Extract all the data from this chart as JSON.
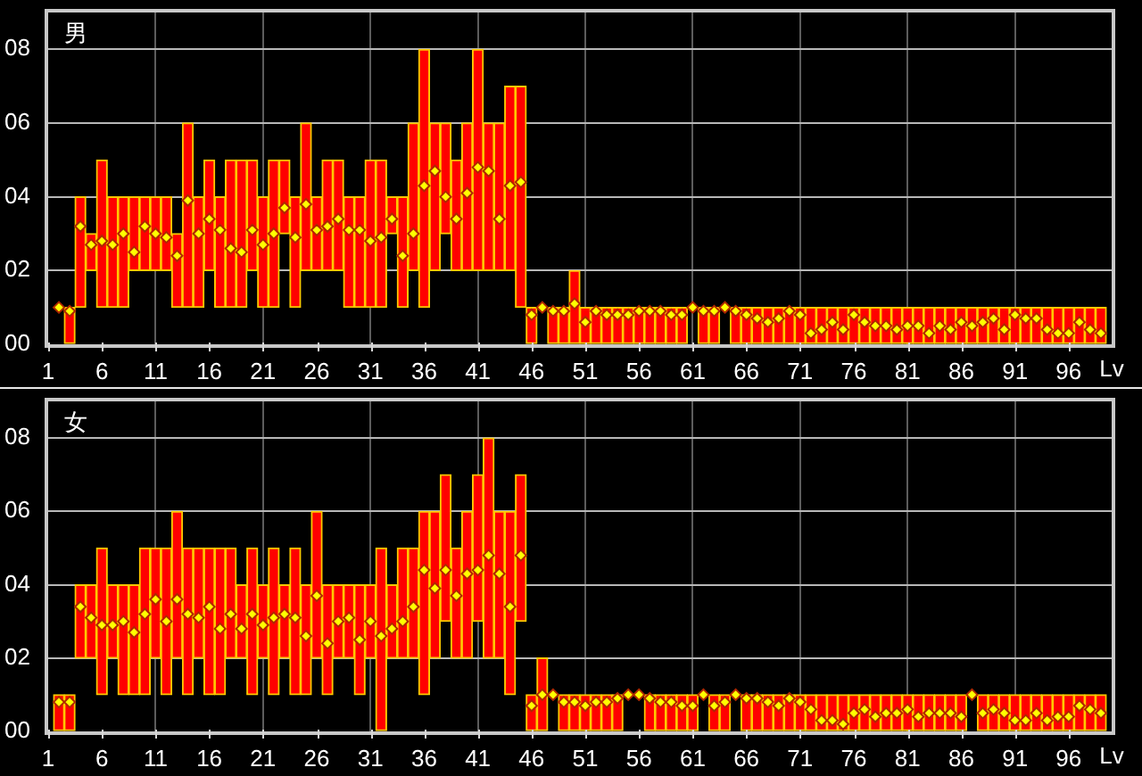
{
  "chart_data": [
    {
      "type": "bar",
      "title": "男",
      "xlabel": "Lv",
      "grid": true,
      "x": [
        2,
        3,
        4,
        5,
        6,
        7,
        8,
        9,
        10,
        11,
        12,
        13,
        14,
        15,
        16,
        17,
        18,
        19,
        20,
        21,
        22,
        23,
        24,
        25,
        26,
        27,
        28,
        29,
        30,
        31,
        32,
        33,
        34,
        35,
        36,
        37,
        38,
        39,
        40,
        41,
        42,
        43,
        44,
        45,
        46,
        47,
        48,
        49,
        50,
        51,
        52,
        53,
        54,
        55,
        56,
        57,
        58,
        59,
        60,
        61,
        62,
        63,
        64,
        65,
        66,
        67,
        68,
        69,
        70,
        71,
        72,
        73,
        74,
        75,
        76,
        77,
        78,
        79,
        80,
        81,
        82,
        83,
        84,
        85,
        86,
        87,
        88,
        89,
        90,
        91,
        92,
        93,
        94,
        95,
        96,
        97,
        98,
        99
      ],
      "xlim": [
        1,
        100
      ],
      "xticks": [
        1,
        6,
        11,
        16,
        21,
        26,
        31,
        36,
        41,
        46,
        51,
        56,
        61,
        66,
        71,
        76,
        81,
        86,
        91,
        96
      ],
      "ylim": [
        0,
        9
      ],
      "yticks": [
        {
          "value": 0,
          "label": "00"
        },
        {
          "value": 2,
          "label": "02"
        },
        {
          "value": 4,
          "label": "04"
        },
        {
          "value": 6,
          "label": "06"
        },
        {
          "value": 8,
          "label": "08"
        }
      ],
      "series": [
        {
          "type": "bar",
          "color": "#ff0000",
          "base": [
            null,
            0,
            1,
            2,
            1,
            1,
            1,
            2,
            2,
            2,
            2,
            1,
            1,
            1,
            2,
            1,
            1,
            1,
            2,
            1,
            1,
            3,
            1,
            2,
            2,
            2,
            2,
            1,
            1,
            1,
            1,
            3,
            1,
            2,
            1,
            2,
            3,
            2,
            2,
            2,
            2,
            2,
            2,
            1,
            0,
            null,
            0,
            0,
            0,
            0,
            0,
            0,
            0,
            0,
            0,
            0,
            0,
            0,
            0,
            null,
            0,
            0,
            null,
            0,
            0,
            0,
            0,
            0,
            0,
            0,
            0,
            0,
            0,
            0,
            0,
            0,
            0,
            0,
            0,
            0,
            0,
            0,
            0,
            0,
            0,
            0,
            0,
            0,
            0,
            0,
            0,
            0,
            0,
            0,
            0,
            0,
            0,
            0
          ],
          "values": [
            null,
            1,
            3,
            1,
            4,
            3,
            3,
            2,
            2,
            2,
            2,
            2,
            5,
            3,
            3,
            3,
            4,
            4,
            3,
            3,
            4,
            2,
            3,
            4,
            2,
            3,
            3,
            3,
            3,
            4,
            4,
            1,
            3,
            4,
            7,
            4,
            3,
            3,
            4,
            6,
            4,
            4,
            5,
            6,
            1,
            null,
            1,
            1,
            2,
            1,
            1,
            1,
            1,
            1,
            1,
            1,
            1,
            1,
            1,
            null,
            1,
            1,
            null,
            1,
            1,
            1,
            1,
            1,
            1,
            1,
            1,
            1,
            1,
            1,
            1,
            1,
            1,
            1,
            1,
            1,
            1,
            1,
            1,
            1,
            1,
            1,
            1,
            1,
            1,
            1,
            1,
            1,
            1,
            1,
            1,
            1,
            1,
            1
          ]
        },
        {
          "type": "scatter",
          "color": "#ffff00",
          "marker": "diamond",
          "values": [
            1.0,
            0.9,
            3.2,
            2.7,
            2.8,
            2.7,
            3.0,
            2.5,
            3.2,
            3.0,
            2.9,
            2.4,
            3.9,
            3.0,
            3.4,
            3.1,
            2.6,
            2.5,
            3.1,
            2.7,
            3.0,
            3.7,
            2.9,
            3.8,
            3.1,
            3.2,
            3.4,
            3.1,
            3.1,
            2.8,
            2.9,
            3.4,
            2.4,
            3.0,
            4.3,
            4.7,
            4.0,
            3.4,
            4.1,
            4.8,
            4.7,
            3.4,
            4.3,
            4.4,
            0.8,
            1.0,
            0.9,
            0.9,
            1.1,
            0.6,
            0.9,
            0.8,
            0.8,
            0.8,
            0.9,
            0.9,
            0.9,
            0.8,
            0.8,
            1.0,
            0.9,
            0.9,
            1.0,
            0.9,
            0.8,
            0.7,
            0.6,
            0.7,
            0.9,
            0.8,
            0.3,
            0.4,
            0.6,
            0.4,
            0.8,
            0.6,
            0.5,
            0.5,
            0.4,
            0.5,
            0.5,
            0.3,
            0.5,
            0.4,
            0.6,
            0.5,
            0.6,
            0.7,
            0.4,
            0.8,
            0.7,
            0.7,
            0.4,
            0.3,
            0.3,
            0.6,
            0.4,
            0.3
          ]
        }
      ]
    },
    {
      "type": "bar",
      "title": "女",
      "xlabel": "Lv",
      "grid": true,
      "x": [
        2,
        3,
        4,
        5,
        6,
        7,
        8,
        9,
        10,
        11,
        12,
        13,
        14,
        15,
        16,
        17,
        18,
        19,
        20,
        21,
        22,
        23,
        24,
        25,
        26,
        27,
        28,
        29,
        30,
        31,
        32,
        33,
        34,
        35,
        36,
        37,
        38,
        39,
        40,
        41,
        42,
        43,
        44,
        45,
        46,
        47,
        48,
        49,
        50,
        51,
        52,
        53,
        54,
        55,
        56,
        57,
        58,
        59,
        60,
        61,
        62,
        63,
        64,
        65,
        66,
        67,
        68,
        69,
        70,
        71,
        72,
        73,
        74,
        75,
        76,
        77,
        78,
        79,
        80,
        81,
        82,
        83,
        84,
        85,
        86,
        87,
        88,
        89,
        90,
        91,
        92,
        93,
        94,
        95,
        96,
        97,
        98,
        99
      ],
      "xlim": [
        1,
        100
      ],
      "xticks": [
        1,
        6,
        11,
        16,
        21,
        26,
        31,
        36,
        41,
        46,
        51,
        56,
        61,
        66,
        71,
        76,
        81,
        86,
        91,
        96
      ],
      "ylim": [
        0,
        9
      ],
      "yticks": [
        {
          "value": 0,
          "label": "00"
        },
        {
          "value": 2,
          "label": "02"
        },
        {
          "value": 4,
          "label": "04"
        },
        {
          "value": 6,
          "label": "06"
        },
        {
          "value": 8,
          "label": "08"
        }
      ],
      "series": [
        {
          "type": "bar",
          "color": "#ff0000",
          "base": [
            0,
            0,
            2,
            2,
            1,
            2,
            1,
            1,
            1,
            2,
            1,
            2,
            1,
            2,
            1,
            1,
            2,
            2,
            1,
            2,
            1,
            2,
            1,
            1,
            2,
            1,
            2,
            2,
            1,
            2,
            0,
            2,
            2,
            2,
            1,
            2,
            3,
            2,
            2,
            3,
            2,
            2,
            1,
            3,
            0,
            0,
            null,
            0,
            0,
            0,
            0,
            0,
            0,
            null,
            null,
            0,
            0,
            0,
            0,
            0,
            null,
            0,
            0,
            null,
            0,
            0,
            0,
            0,
            0,
            0,
            0,
            0,
            0,
            0,
            0,
            0,
            0,
            0,
            0,
            0,
            0,
            0,
            0,
            0,
            0,
            null,
            0,
            0,
            0,
            0,
            0,
            0,
            0,
            0,
            0,
            0,
            0,
            0
          ],
          "values": [
            1,
            1,
            2,
            2,
            4,
            2,
            3,
            3,
            4,
            3,
            4,
            4,
            4,
            3,
            4,
            4,
            3,
            2,
            4,
            2,
            4,
            2,
            4,
            3,
            4,
            3,
            2,
            2,
            3,
            2,
            5,
            2,
            3,
            3,
            5,
            4,
            4,
            3,
            4,
            4,
            6,
            4,
            5,
            4,
            1,
            2,
            null,
            1,
            1,
            1,
            1,
            1,
            1,
            null,
            null,
            1,
            1,
            1,
            1,
            1,
            null,
            1,
            1,
            null,
            1,
            1,
            1,
            1,
            1,
            1,
            1,
            1,
            1,
            1,
            1,
            1,
            1,
            1,
            1,
            1,
            1,
            1,
            1,
            1,
            1,
            null,
            1,
            1,
            1,
            1,
            1,
            1,
            1,
            1,
            1,
            1,
            1,
            1
          ]
        },
        {
          "type": "scatter",
          "color": "#ffff00",
          "marker": "diamond",
          "values": [
            0.8,
            0.8,
            3.4,
            3.1,
            2.9,
            2.9,
            3.0,
            2.7,
            3.2,
            3.6,
            3.0,
            3.6,
            3.2,
            3.1,
            3.4,
            2.8,
            3.2,
            2.8,
            3.2,
            2.9,
            3.1,
            3.2,
            3.1,
            2.6,
            3.7,
            2.4,
            3.0,
            3.1,
            2.5,
            3.0,
            2.6,
            2.8,
            3.0,
            3.4,
            4.4,
            3.9,
            4.4,
            3.7,
            4.3,
            4.4,
            4.8,
            4.3,
            3.4,
            4.8,
            0.7,
            1.0,
            1.0,
            0.8,
            0.8,
            0.7,
            0.8,
            0.8,
            0.9,
            1.0,
            1.0,
            0.9,
            0.8,
            0.8,
            0.7,
            0.7,
            1.0,
            0.7,
            0.8,
            1.0,
            0.9,
            0.9,
            0.8,
            0.7,
            0.9,
            0.8,
            0.6,
            0.3,
            0.3,
            0.2,
            0.5,
            0.6,
            0.4,
            0.5,
            0.5,
            0.6,
            0.4,
            0.5,
            0.5,
            0.5,
            0.4,
            1.0,
            0.5,
            0.6,
            0.5,
            0.3,
            0.3,
            0.5,
            0.3,
            0.4,
            0.4,
            0.7,
            0.6,
            0.5
          ]
        }
      ]
    }
  ]
}
